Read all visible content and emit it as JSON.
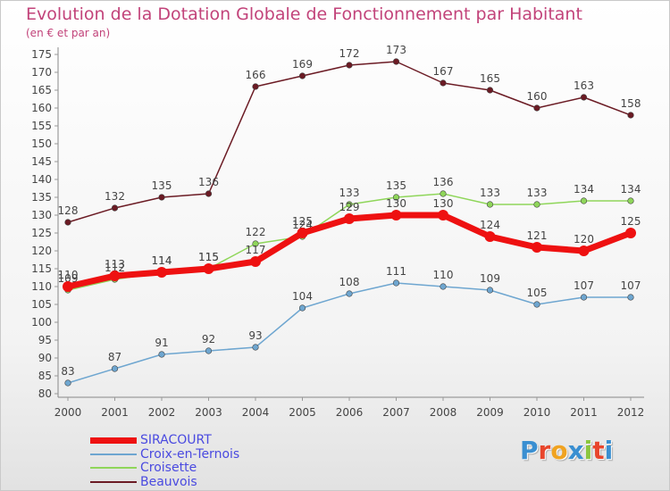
{
  "header": {
    "title": "Evolution de la Dotation Globale de Fonctionnement par Habitant",
    "subtitle": "(en € et par an)"
  },
  "logo": {
    "letters": [
      "P",
      "r",
      "o",
      "x",
      "i",
      "t",
      "i"
    ],
    "colors": [
      "#3a8fd1",
      "#e8462c",
      "#f0a321",
      "#3a8fd1",
      "#8cc63e",
      "#e8462c",
      "#3a8fd1"
    ]
  },
  "colors": {
    "title": "#c2437a",
    "axis_text": "#444444",
    "legend_text": "#4a4ae0"
  },
  "chart_data": {
    "type": "line",
    "title": "Evolution de la Dotation Globale de Fonctionnement par Habitant",
    "subtitle": "(en € et par an)",
    "x": [
      "2000",
      "2001",
      "2002",
      "2003",
      "2004",
      "2005",
      "2006",
      "2007",
      "2008",
      "2009",
      "2010",
      "2011",
      "2012"
    ],
    "ylim": [
      80,
      175
    ],
    "yticks": [
      80,
      85,
      90,
      95,
      100,
      105,
      110,
      115,
      120,
      125,
      130,
      135,
      140,
      145,
      150,
      155,
      160,
      165,
      170,
      175
    ],
    "grid": false,
    "legend_position": "bottom-left",
    "series": [
      {
        "name": "Beauvois",
        "color": "#6b1b24",
        "values": [
          128,
          132,
          135,
          136,
          166,
          169,
          172,
          173,
          167,
          165,
          160,
          163,
          158
        ]
      },
      {
        "name": "Croisette",
        "color": "#8fd65a",
        "values": [
          109,
          112,
          114,
          115,
          122,
          124,
          133,
          135,
          136,
          133,
          133,
          134,
          134
        ]
      },
      {
        "name": "Croix-en-Ternois",
        "color": "#6ea6d0",
        "values": [
          83,
          87,
          91,
          92,
          93,
          104,
          108,
          111,
          110,
          109,
          105,
          107,
          107
        ]
      },
      {
        "name": "SIRACOURT",
        "color": "#ee1111",
        "values": [
          110,
          113,
          114,
          115,
          117,
          125,
          129,
          130,
          130,
          124,
          121,
          120,
          125
        ]
      }
    ],
    "legend": [
      "SIRACOURT",
      "Croix-en-Ternois",
      "Croisette",
      "Beauvois"
    ]
  }
}
